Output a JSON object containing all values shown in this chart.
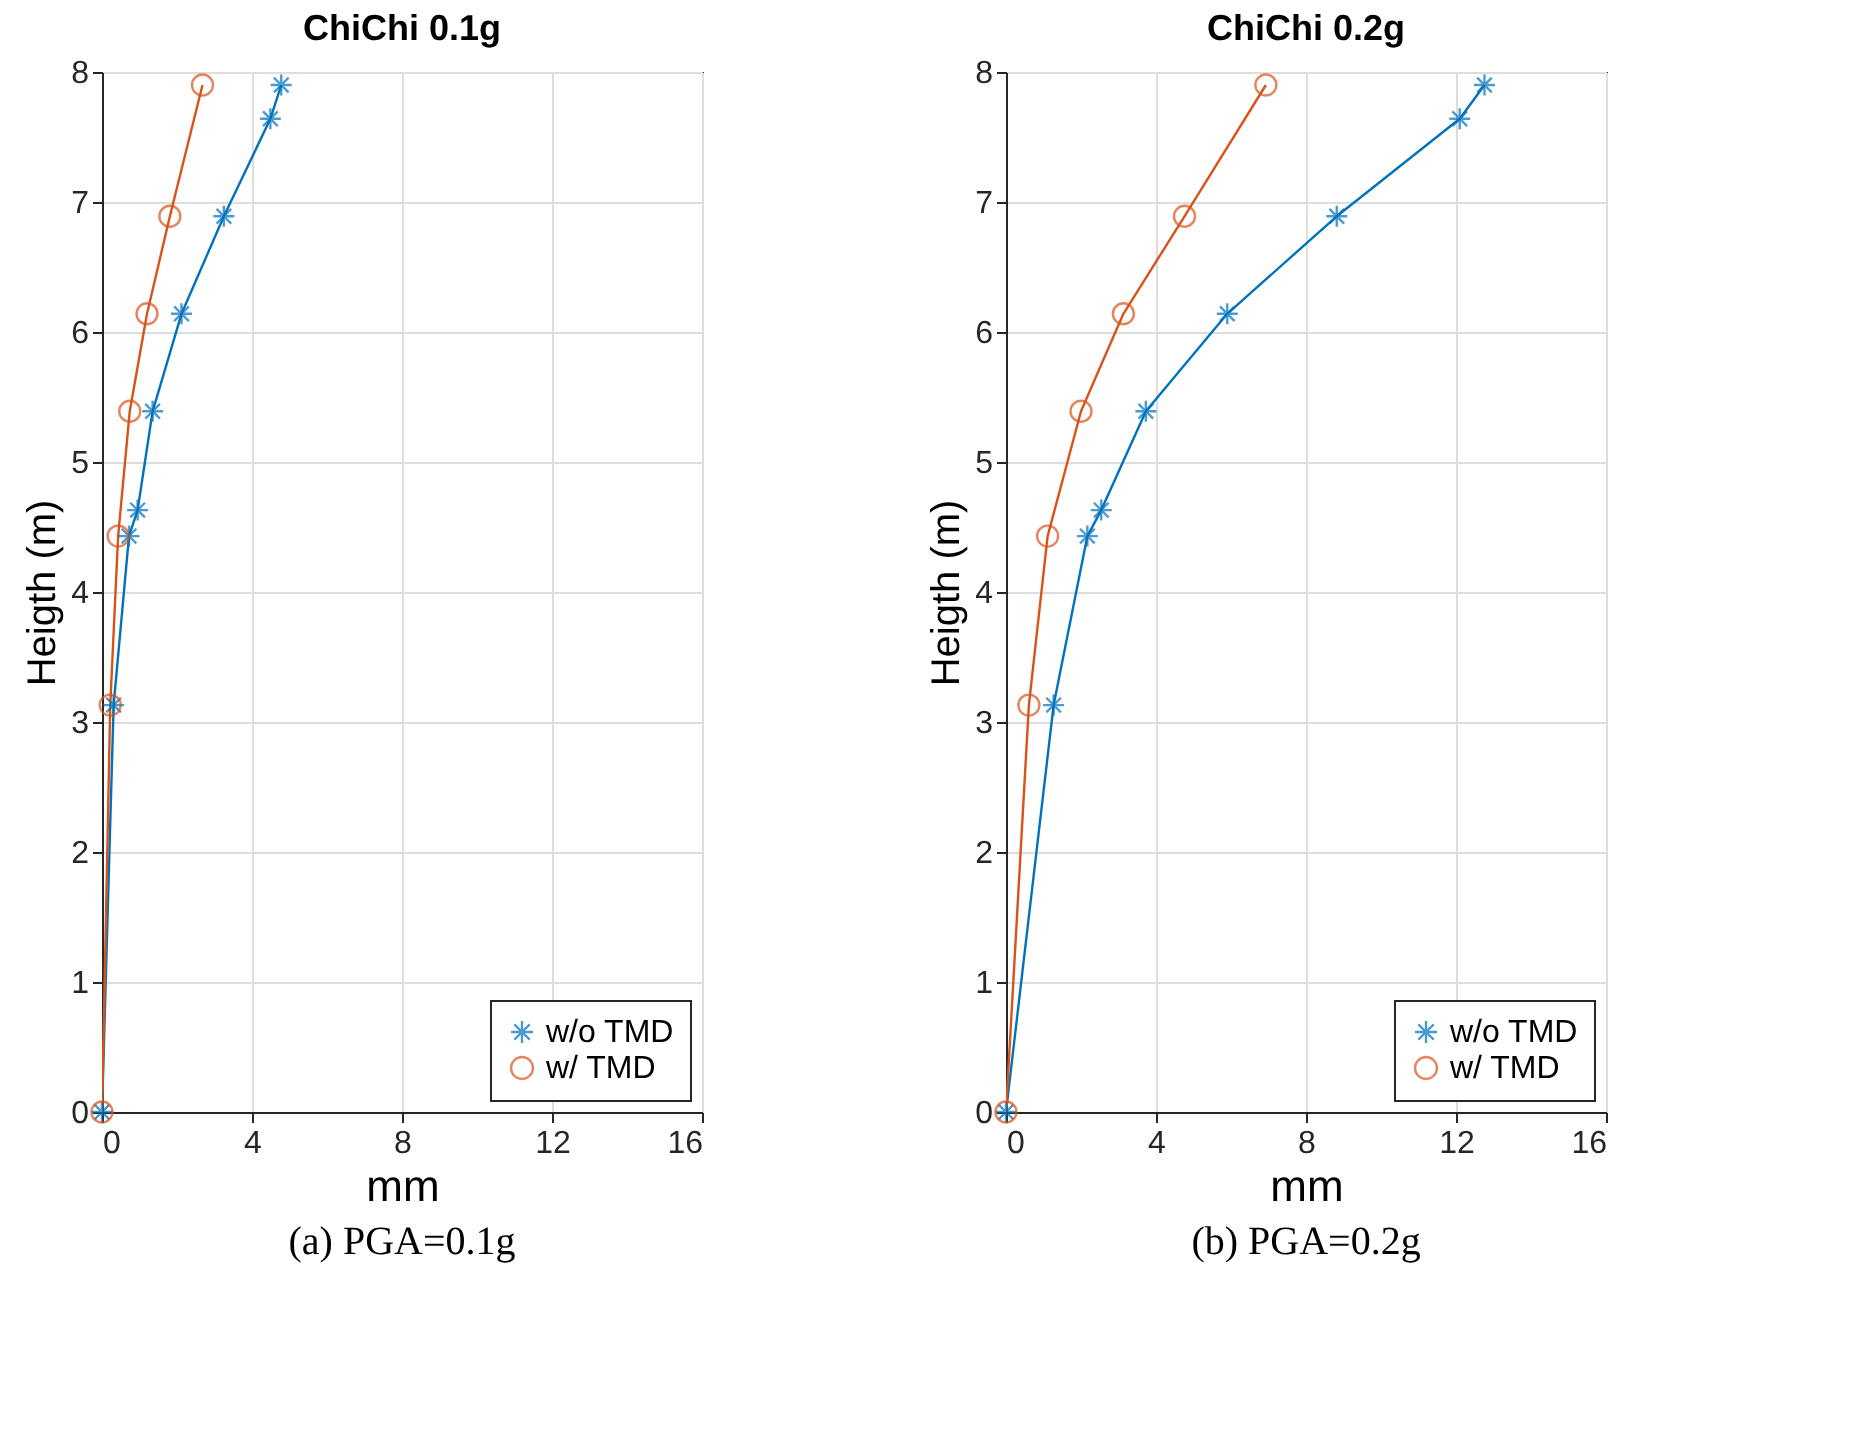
{
  "chart_data": [
    {
      "type": "line",
      "title": "ChiChi 0.1g",
      "xlabel": "mm",
      "ylabel": "Heigth (m)",
      "annotations": [
        "(a) PGA=0.1g"
      ],
      "xlim": [
        0,
        16
      ],
      "xticks": [
        0,
        4,
        8,
        12,
        16
      ],
      "ylim": [
        0,
        8
      ],
      "yticks": [
        0,
        1,
        2,
        3,
        4,
        5,
        6,
        7,
        8
      ],
      "grid": true,
      "legend": "bottom right",
      "line_style": "solid",
      "series": [
        {
          "name": "w/o TMD",
          "color": "#0072bd",
          "marker": "cross",
          "x": [
            0,
            0.31,
            0.72,
            0.95,
            1.35,
            2.12,
            3.25,
            4.49,
            4.78
          ],
          "values": [
            0,
            3.13,
            4.43,
            4.63,
            5.39,
            6.14,
            6.89,
            7.64,
            7.9
          ]
        },
        {
          "name": "w/ TMD",
          "color": "#d95319",
          "marker": "circle",
          "x": [
            0,
            0.22,
            0.43,
            0.74,
            1.2,
            1.81,
            2.68
          ],
          "values": [
            0,
            3.13,
            4.43,
            5.39,
            6.14,
            6.89,
            7.9
          ]
        }
      ]
    },
    {
      "type": "line",
      "title": "ChiChi 0.2g",
      "xlabel": "mm",
      "ylabel": "Heigth (m)",
      "annotations": [
        "(b) PGA=0.2g"
      ],
      "xlim": [
        0,
        16
      ],
      "xticks": [
        0,
        4,
        8,
        12,
        16
      ],
      "ylim": [
        0,
        8
      ],
      "yticks": [
        0,
        1,
        2,
        3,
        4,
        5,
        6,
        7,
        8
      ],
      "grid": true,
      "legend": "bottom right",
      "line_style": "solid",
      "series": [
        {
          "name": "w/o TMD",
          "color": "#0072bd",
          "marker": "cross",
          "x": [
            0,
            1.27,
            2.17,
            2.54,
            3.73,
            5.9,
            8.82,
            12.1,
            12.76
          ],
          "values": [
            0,
            3.13,
            4.43,
            4.63,
            5.39,
            6.14,
            6.89,
            7.64,
            7.9
          ]
        },
        {
          "name": "w/ TMD",
          "color": "#d95319",
          "marker": "circle",
          "x": [
            0,
            0.61,
            1.11,
            2.0,
            3.13,
            4.76,
            6.93
          ],
          "values": [
            0,
            3.13,
            4.43,
            5.39,
            6.14,
            6.89,
            7.9
          ]
        }
      ]
    }
  ]
}
